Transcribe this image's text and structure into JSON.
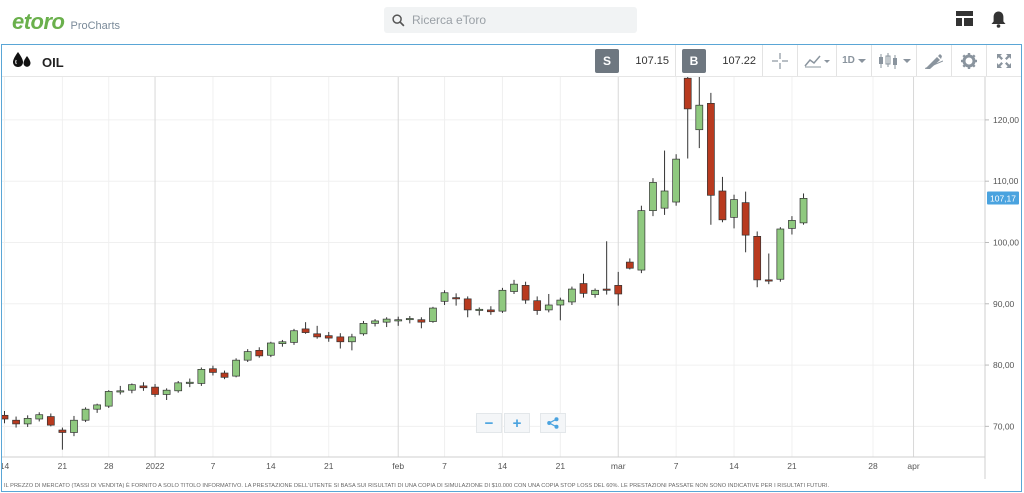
{
  "header": {
    "logo_text": "etoro",
    "logo_sub": "ProCharts",
    "search_placeholder": "Ricerca eToro"
  },
  "instrument": {
    "name": "OIL"
  },
  "toolbar": {
    "sell_label": "S",
    "sell_price": "107.15",
    "buy_label": "B",
    "buy_price": "107.22",
    "timeframe": "1D"
  },
  "colors": {
    "up": "#8fc97f",
    "down": "#b83a1f",
    "accent": "#4aa3df",
    "frame": "#5aa6d6"
  },
  "chart_data": {
    "type": "candlestick",
    "y_ticks": [
      "70,00",
      "80,00",
      "90,00",
      "100,00",
      "110,00",
      "120,00"
    ],
    "y_tick_values": [
      70,
      80,
      90,
      100,
      110,
      120
    ],
    "ylim": [
      65,
      127
    ],
    "current_price_label": "107,17",
    "current_price": 107.17,
    "x_ticks": [
      {
        "label": "14",
        "i": 0
      },
      {
        "label": "21",
        "i": 5
      },
      {
        "label": "28",
        "i": 9
      },
      {
        "label": "2022",
        "i": 13
      },
      {
        "label": "7",
        "i": 18
      },
      {
        "label": "14",
        "i": 23
      },
      {
        "label": "21",
        "i": 28
      },
      {
        "label": "feb",
        "i": 34
      },
      {
        "label": "7",
        "i": 38
      },
      {
        "label": "14",
        "i": 43
      },
      {
        "label": "21",
        "i": 48
      },
      {
        "label": "mar",
        "i": 53
      },
      {
        "label": "7",
        "i": 58
      },
      {
        "label": "14",
        "i": 63
      },
      {
        "label": "21",
        "i": 68
      },
      {
        "label": "28",
        "i": 75
      },
      {
        "label": "apr",
        "i": 78.5
      }
    ],
    "gridlines_major_i": [
      13,
      34,
      53,
      78.5
    ],
    "candles": [
      {
        "o": 71.8,
        "h": 72.5,
        "l": 70.5,
        "c": 71.2
      },
      {
        "o": 71.0,
        "h": 71.6,
        "l": 69.8,
        "c": 70.4
      },
      {
        "o": 70.4,
        "h": 71.8,
        "l": 69.9,
        "c": 71.3
      },
      {
        "o": 71.2,
        "h": 72.3,
        "l": 70.8,
        "c": 71.9
      },
      {
        "o": 71.6,
        "h": 72.1,
        "l": 70.0,
        "c": 70.2
      },
      {
        "o": 69.4,
        "h": 69.8,
        "l": 66.2,
        "c": 69.0
      },
      {
        "o": 69.0,
        "h": 71.7,
        "l": 68.4,
        "c": 71.0
      },
      {
        "o": 71.0,
        "h": 73.1,
        "l": 70.7,
        "c": 72.8
      },
      {
        "o": 72.8,
        "h": 73.7,
        "l": 72.2,
        "c": 73.5
      },
      {
        "o": 73.3,
        "h": 75.9,
        "l": 73.0,
        "c": 75.7
      },
      {
        "o": 75.7,
        "h": 76.6,
        "l": 75.2,
        "c": 75.8
      },
      {
        "o": 75.9,
        "h": 77.0,
        "l": 75.4,
        "c": 76.8
      },
      {
        "o": 76.6,
        "h": 77.2,
        "l": 75.8,
        "c": 76.3
      },
      {
        "o": 76.4,
        "h": 76.9,
        "l": 74.8,
        "c": 75.2
      },
      {
        "o": 75.2,
        "h": 76.2,
        "l": 74.3,
        "c": 75.9
      },
      {
        "o": 75.8,
        "h": 77.4,
        "l": 75.5,
        "c": 77.1
      },
      {
        "o": 77.0,
        "h": 77.8,
        "l": 76.4,
        "c": 77.2
      },
      {
        "o": 77.0,
        "h": 79.6,
        "l": 76.6,
        "c": 79.3
      },
      {
        "o": 79.4,
        "h": 79.9,
        "l": 78.3,
        "c": 78.8
      },
      {
        "o": 78.7,
        "h": 79.1,
        "l": 77.7,
        "c": 78.0
      },
      {
        "o": 78.2,
        "h": 81.1,
        "l": 78.0,
        "c": 80.8
      },
      {
        "o": 80.8,
        "h": 82.6,
        "l": 80.5,
        "c": 82.2
      },
      {
        "o": 82.4,
        "h": 82.9,
        "l": 81.2,
        "c": 81.5
      },
      {
        "o": 81.6,
        "h": 83.8,
        "l": 81.3,
        "c": 83.6
      },
      {
        "o": 83.5,
        "h": 84.1,
        "l": 83.0,
        "c": 83.8
      },
      {
        "o": 83.7,
        "h": 85.9,
        "l": 83.3,
        "c": 85.6
      },
      {
        "o": 85.9,
        "h": 87.0,
        "l": 85.1,
        "c": 85.3
      },
      {
        "o": 85.1,
        "h": 86.4,
        "l": 84.3,
        "c": 84.6
      },
      {
        "o": 84.8,
        "h": 85.4,
        "l": 83.8,
        "c": 84.4
      },
      {
        "o": 84.6,
        "h": 85.2,
        "l": 82.7,
        "c": 83.8
      },
      {
        "o": 83.8,
        "h": 85.1,
        "l": 82.4,
        "c": 84.6
      },
      {
        "o": 85.1,
        "h": 87.2,
        "l": 84.8,
        "c": 86.8
      },
      {
        "o": 86.8,
        "h": 87.5,
        "l": 86.3,
        "c": 87.2
      },
      {
        "o": 87.0,
        "h": 87.8,
        "l": 86.2,
        "c": 87.5
      },
      {
        "o": 87.2,
        "h": 87.9,
        "l": 86.4,
        "c": 87.4
      },
      {
        "o": 87.5,
        "h": 88.0,
        "l": 86.8,
        "c": 87.6
      },
      {
        "o": 87.4,
        "h": 87.8,
        "l": 86.0,
        "c": 87.0
      },
      {
        "o": 87.1,
        "h": 89.5,
        "l": 86.9,
        "c": 89.3
      },
      {
        "o": 90.4,
        "h": 92.2,
        "l": 89.8,
        "c": 91.8
      },
      {
        "o": 91.0,
        "h": 91.7,
        "l": 89.7,
        "c": 90.8
      },
      {
        "o": 90.8,
        "h": 91.2,
        "l": 87.8,
        "c": 89.0
      },
      {
        "o": 88.9,
        "h": 89.4,
        "l": 88.1,
        "c": 89.1
      },
      {
        "o": 89.0,
        "h": 89.6,
        "l": 88.2,
        "c": 88.7
      },
      {
        "o": 88.8,
        "h": 92.6,
        "l": 88.5,
        "c": 92.2
      },
      {
        "o": 92.0,
        "h": 93.9,
        "l": 91.6,
        "c": 93.2
      },
      {
        "o": 93.0,
        "h": 93.6,
        "l": 90.0,
        "c": 90.6
      },
      {
        "o": 90.5,
        "h": 91.2,
        "l": 88.2,
        "c": 88.9
      },
      {
        "o": 89.0,
        "h": 91.6,
        "l": 88.6,
        "c": 89.8
      },
      {
        "o": 89.8,
        "h": 91.0,
        "l": 87.3,
        "c": 90.6
      },
      {
        "o": 90.3,
        "h": 92.8,
        "l": 89.8,
        "c": 92.4
      },
      {
        "o": 93.3,
        "h": 94.9,
        "l": 91.0,
        "c": 91.7
      },
      {
        "o": 91.5,
        "h": 92.5,
        "l": 91.0,
        "c": 92.2
      },
      {
        "o": 92.4,
        "h": 100.2,
        "l": 91.5,
        "c": 92.2
      },
      {
        "o": 93.0,
        "h": 95.2,
        "l": 89.7,
        "c": 91.6
      },
      {
        "o": 96.8,
        "h": 97.4,
        "l": 95.6,
        "c": 95.8
      },
      {
        "o": 95.5,
        "h": 106.0,
        "l": 95.0,
        "c": 105.2
      },
      {
        "o": 105.2,
        "h": 110.5,
        "l": 104.3,
        "c": 109.8
      },
      {
        "o": 105.6,
        "h": 115.0,
        "l": 104.5,
        "c": 108.4
      },
      {
        "o": 106.6,
        "h": 114.4,
        "l": 106.0,
        "c": 113.6
      },
      {
        "o": 126.8,
        "h": 127.3,
        "l": 113.7,
        "c": 121.8
      },
      {
        "o": 118.4,
        "h": 128.3,
        "l": 115.4,
        "c": 122.4
      },
      {
        "o": 122.7,
        "h": 124.4,
        "l": 102.9,
        "c": 107.7
      },
      {
        "o": 108.4,
        "h": 110.7,
        "l": 103.3,
        "c": 103.7
      },
      {
        "o": 104.1,
        "h": 107.8,
        "l": 102.3,
        "c": 107.0
      },
      {
        "o": 106.5,
        "h": 108.3,
        "l": 98.4,
        "c": 101.2
      },
      {
        "o": 101.0,
        "h": 101.8,
        "l": 92.7,
        "c": 93.9
      },
      {
        "o": 93.9,
        "h": 98.2,
        "l": 93.2,
        "c": 93.7
      },
      {
        "o": 94.0,
        "h": 102.5,
        "l": 93.6,
        "c": 102.2
      },
      {
        "o": 102.3,
        "h": 104.3,
        "l": 101.3,
        "c": 103.6
      },
      {
        "o": 103.2,
        "h": 108.0,
        "l": 102.9,
        "c": 107.2
      }
    ]
  },
  "footer_text": "IL PREZZO DI MERCATO (TASSI DI VENDITA) È FORNITO A SOLO TITOLO INFORMATIVO. LA PRESTAZIONE DELL'UTENTE SI BASA SUI RISULTATI DI UNA COPIA DI SIMULAZIONE DI $10.000 CON UNA COPIA STOP LOSS DEL 60%. LE PRESTAZIONI PASSATE NON SONO INDICATIVE PER I RISULTATI FUTURI."
}
